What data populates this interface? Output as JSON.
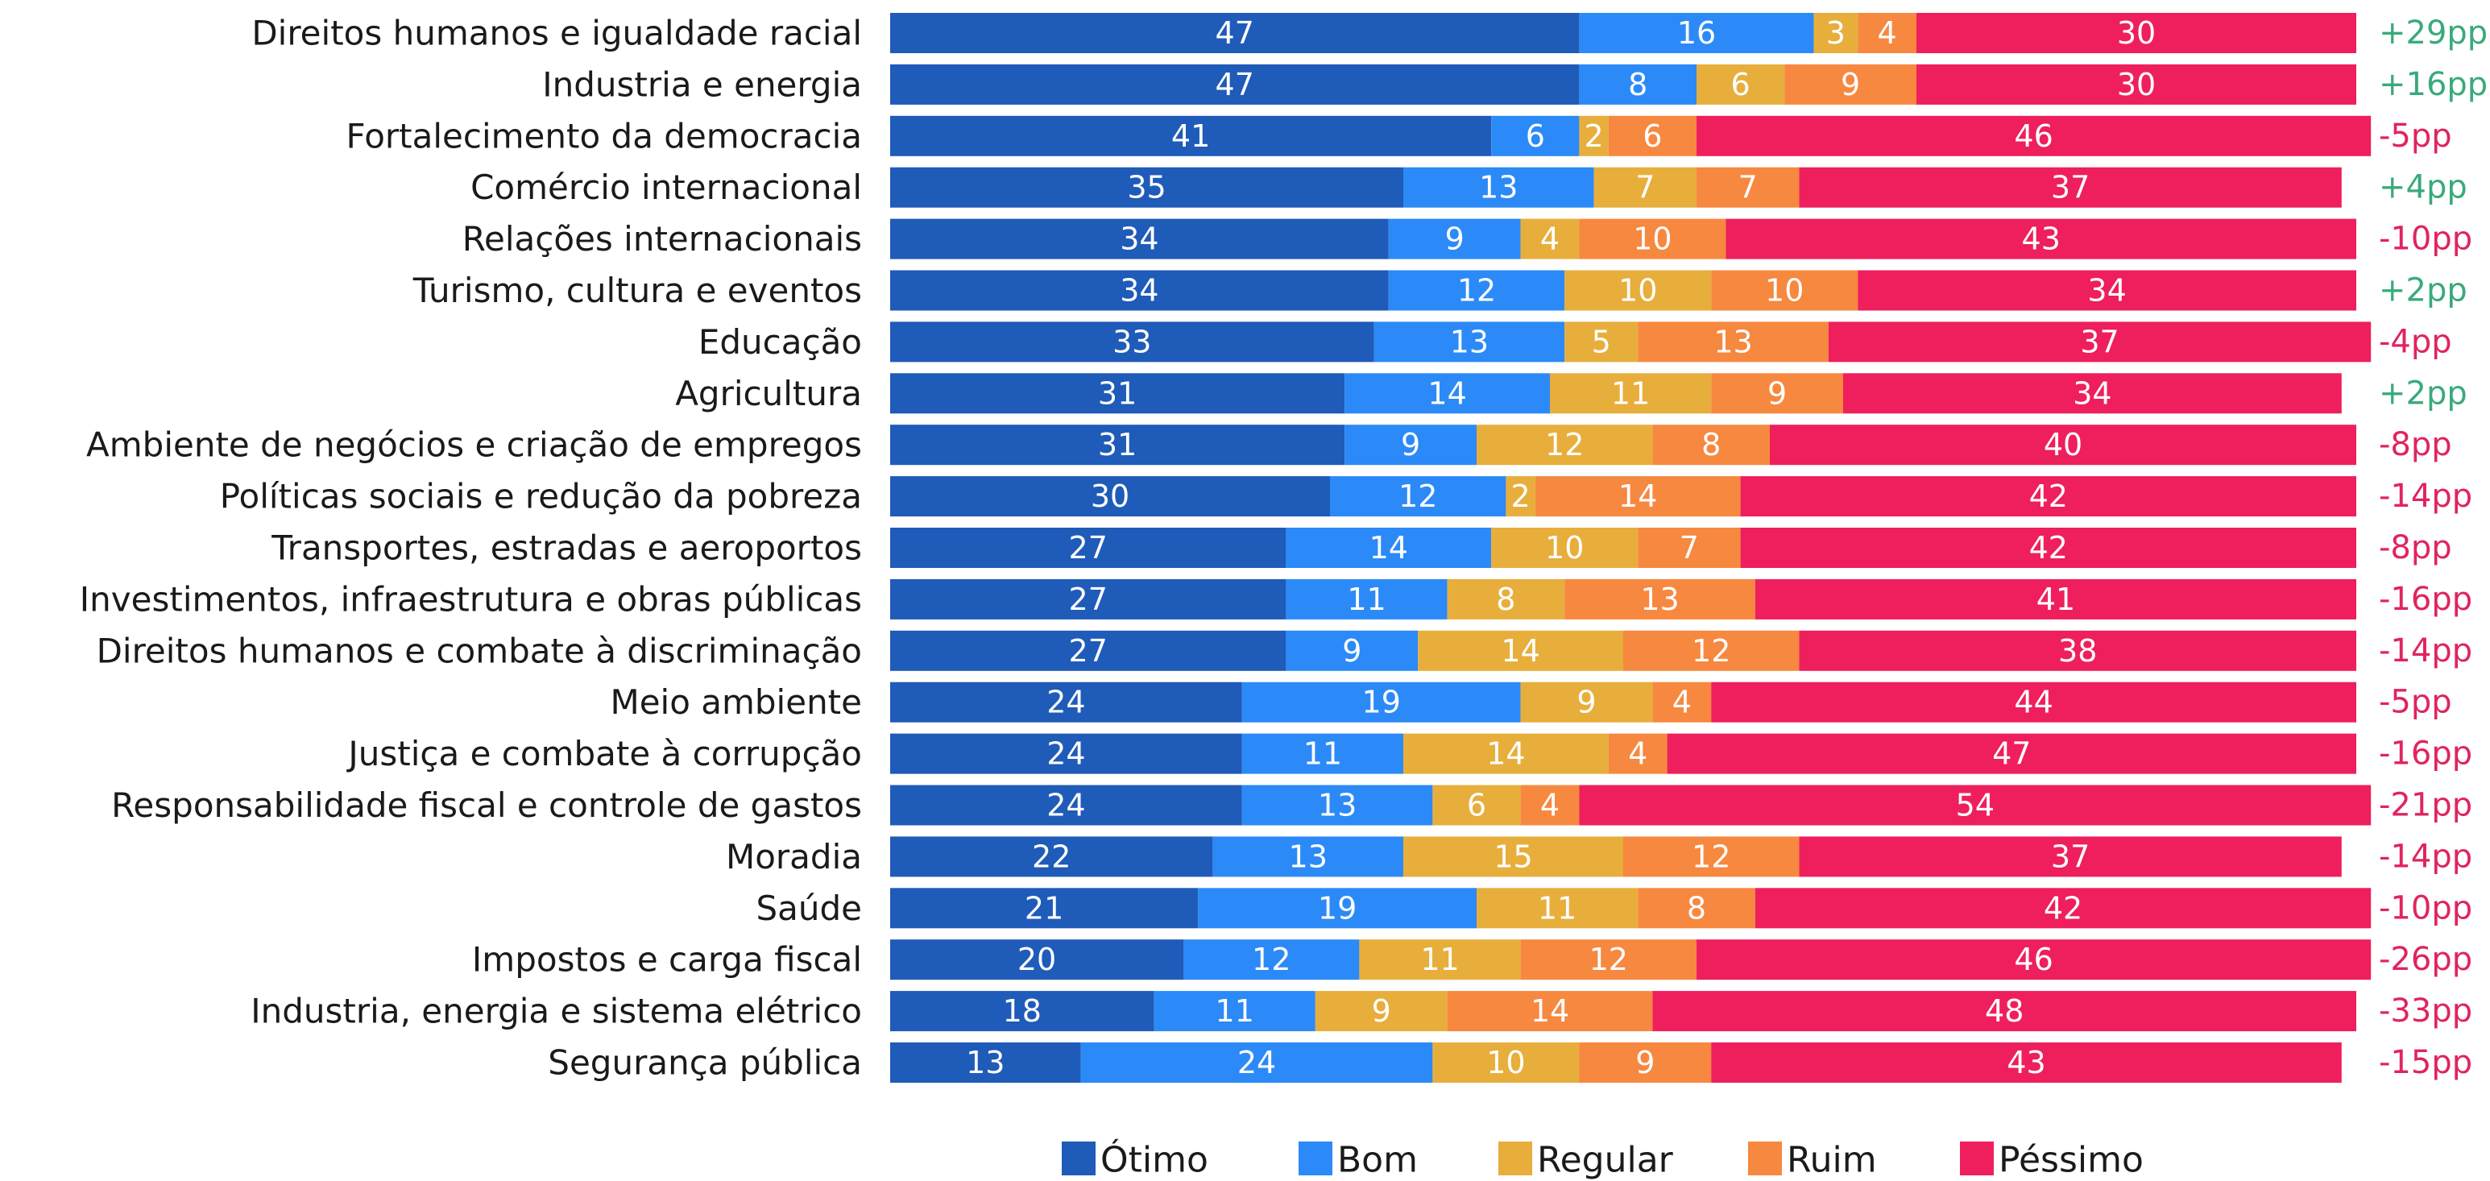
{
  "chart_data": {
    "type": "bar",
    "orientation": "horizontal",
    "stacked": true,
    "xlim": [
      0,
      100
    ],
    "grid": false,
    "legend_position": "bottom-center",
    "categories": [
      "Direitos humanos e igualdade racial",
      "Industria e energia",
      "Fortalecimento da democracia",
      "Comércio internacional",
      "Relações internacionais",
      "Turismo, cultura e eventos",
      "Educação",
      "Agricultura",
      "Ambiente de negócios e criação de empregos",
      "Políticas sociais e redução da pobreza",
      "Transportes, estradas e aeroportos",
      "Investimentos, infraestrutura e obras públicas",
      "Direitos humanos e combate à discriminação",
      "Meio ambiente",
      "Justiça e combate à corrupção",
      "Responsabilidade fiscal e controle de gastos",
      "Moradia",
      "Saúde",
      "Impostos e carga fiscal",
      "Industria, energia e sistema elétrico",
      "Segurança pública"
    ],
    "series": [
      {
        "name": "Ótimo",
        "color": "#1f5bb8",
        "values": [
          47,
          47,
          41,
          35,
          34,
          34,
          33,
          31,
          31,
          30,
          27,
          27,
          27,
          24,
          24,
          24,
          22,
          21,
          20,
          18,
          13
        ]
      },
      {
        "name": "Bom",
        "color": "#2b8af7",
        "values": [
          16,
          8,
          6,
          13,
          9,
          12,
          13,
          14,
          9,
          12,
          14,
          11,
          9,
          19,
          11,
          13,
          13,
          19,
          12,
          11,
          24
        ]
      },
      {
        "name": "Regular",
        "color": "#e8ae3c",
        "values": [
          3,
          6,
          2,
          7,
          4,
          10,
          5,
          11,
          12,
          2,
          10,
          8,
          14,
          9,
          14,
          6,
          15,
          11,
          11,
          9,
          10
        ]
      },
      {
        "name": "Ruim",
        "color": "#f7883f",
        "values": [
          4,
          9,
          6,
          7,
          10,
          10,
          13,
          9,
          8,
          14,
          7,
          13,
          12,
          4,
          4,
          4,
          12,
          8,
          12,
          14,
          9
        ]
      },
      {
        "name": "Péssimo",
        "color": "#ee1f5c",
        "values": [
          30,
          30,
          46,
          37,
          43,
          34,
          37,
          34,
          40,
          42,
          42,
          41,
          38,
          44,
          47,
          54,
          37,
          42,
          46,
          48,
          43
        ]
      }
    ],
    "net_labels": [
      "+29pp",
      "+16pp",
      "-5pp",
      "+4pp",
      "-10pp",
      "+2pp",
      "-4pp",
      "+2pp",
      "-8pp",
      "-14pp",
      "-8pp",
      "-16pp",
      "-14pp",
      "-5pp",
      "-16pp",
      "-21pp",
      "-14pp",
      "-10pp",
      "-26pp",
      "-33pp",
      "-15pp"
    ],
    "net_colors": {
      "positive": "#3aaa7a",
      "negative": "#e0245e"
    }
  }
}
